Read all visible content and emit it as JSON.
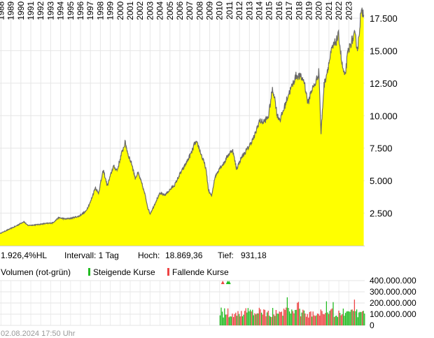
{
  "chart_data": [
    {
      "type": "area",
      "title": "",
      "xlabel": "",
      "ylabel": "",
      "x_years": [
        "1988",
        "1989",
        "1990",
        "1991",
        "1992",
        "1993",
        "1994",
        "1995",
        "1996",
        "1997",
        "1998",
        "1999",
        "2000",
        "2001",
        "2002",
        "2003",
        "2004",
        "2005",
        "2006",
        "2007",
        "2008",
        "2009",
        "2010",
        "2011",
        "2012",
        "2013",
        "2014",
        "2015",
        "2016",
        "2017",
        "2018",
        "2019",
        "2020",
        "2021",
        "2022",
        "2023"
      ],
      "xlim": [
        1987.9,
        2024.6
      ],
      "ylim": [
        0,
        18900
      ],
      "y_ticks": [
        2500,
        5000,
        7500,
        10000,
        12500,
        15000,
        17500
      ],
      "y_tick_labels": [
        "2.500",
        "5.000",
        "7.500",
        "10.000",
        "12.500",
        "15.000",
        "17.500"
      ],
      "grid": true,
      "fill_color": "#ffff00",
      "line_color": "#6a6a6a",
      "series": [
        {
          "x": [
            1987.9,
            1988.5,
            1989.5,
            1990.3,
            1990.7,
            1991.5,
            1992.5,
            1993.2,
            1993.8,
            1994.5,
            1995.0,
            1995.8,
            1996.5,
            1997.0,
            1997.5,
            1997.8,
            1998.3,
            1998.7,
            1999.3,
            1999.7,
            2000.1,
            2000.5,
            2000.8,
            2001.2,
            2001.5,
            2001.8,
            2002.2,
            2002.5,
            2002.8,
            2003.0,
            2003.3,
            2003.7,
            2004.0,
            2004.5,
            2005.0,
            2005.5,
            2006.0,
            2006.4,
            2006.8,
            2007.2,
            2007.5,
            2007.8,
            2008.2,
            2008.6,
            2008.9,
            2009.2,
            2009.5,
            2010.0,
            2010.4,
            2010.8,
            2011.3,
            2011.7,
            2012.2,
            2012.6,
            2013.0,
            2013.5,
            2014.0,
            2014.4,
            2014.9,
            2015.3,
            2015.5,
            2015.8,
            2016.1,
            2016.5,
            2016.9,
            2017.3,
            2017.7,
            2018.1,
            2018.5,
            2018.9,
            2019.2,
            2019.6,
            2020.0,
            2020.2,
            2020.5,
            2020.9,
            2021.3,
            2021.7,
            2022.0,
            2022.3,
            2022.6,
            2022.9,
            2023.2,
            2023.6,
            2023.9,
            2024.2,
            2024.5
          ],
          "y": [
            931,
            1150,
            1500,
            1850,
            1550,
            1600,
            1700,
            1750,
            2150,
            2050,
            2100,
            2250,
            2600,
            3350,
            4500,
            4000,
            5800,
            4600,
            6100,
            5800,
            7000,
            7950,
            7000,
            6200,
            5200,
            5600,
            4700,
            3900,
            2850,
            2450,
            2900,
            3600,
            4000,
            3900,
            4300,
            4700,
            5500,
            6000,
            6600,
            7200,
            7900,
            7800,
            6900,
            6000,
            4200,
            3800,
            5200,
            6000,
            6300,
            6900,
            7400,
            5900,
            6800,
            7200,
            7700,
            8400,
            9600,
            9500,
            9900,
            12000,
            11600,
            10000,
            9700,
            10600,
            11600,
            12300,
            13100,
            13000,
            12700,
            10900,
            11900,
            12400,
            13400,
            8550,
            12300,
            13700,
            15100,
            15700,
            16200,
            14000,
            12900,
            14800,
            15600,
            16200,
            15100,
            17800,
            18000
          ]
        }
      ]
    },
    {
      "type": "bar",
      "title": "",
      "legend": {
        "label": "Volumen (rot-grün)",
        "up_label": "Steigende Kurse",
        "down_label": "Fallende Kurse",
        "up_color": "#22bb22",
        "down_color": "#ee4444"
      },
      "x_start": 2010.0,
      "x_end": 2024.6,
      "ylim": [
        0,
        400000000
      ],
      "y_ticks": [
        0,
        100000000,
        200000000,
        300000000,
        400000000
      ],
      "y_tick_labels": [
        "0",
        "100.000.000",
        "200.000.000",
        "300.000.000",
        "400.000.000"
      ],
      "grid": true
    }
  ],
  "info": {
    "perf": "1.926,4%HL",
    "interval": "Intervall: 1 Tag",
    "high_label": "Hoch:",
    "high_value": "18.869,36",
    "low_label": "Tief:",
    "low_value": "931,18"
  },
  "footer": {
    "timestamp": "02.08.2024 17:50 Uhr"
  }
}
